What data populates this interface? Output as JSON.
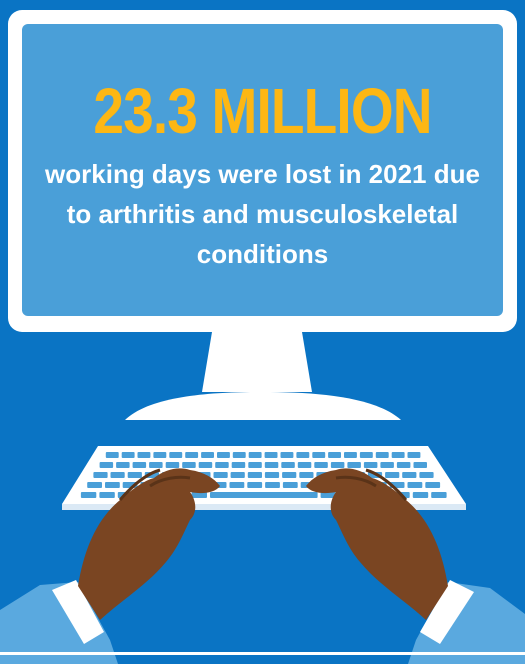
{
  "stat": {
    "headline": "23.3 MILLION",
    "description": "working days were lost in 2021 due to arthritis and musculoskeletal conditions"
  },
  "colors": {
    "background": "#0a74c4",
    "screen": "#4a9fd8",
    "frame": "#ffffff",
    "accent": "#fdb714",
    "skin": "#7a4522",
    "sleeve": "#5aa9df"
  },
  "icons": [
    "monitor-icon",
    "keyboard-icon",
    "hands-icon"
  ]
}
